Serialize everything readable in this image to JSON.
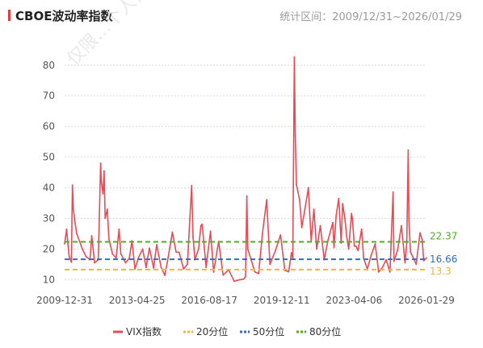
{
  "header": {
    "title": "CBOE波动率指数",
    "range": "统计区间：2009/12/31~2026/01/29"
  },
  "watermark": "仅限…个人使用",
  "colors": {
    "accent": "#e5383b",
    "series": "#e94a55",
    "p20": "#f5b53a",
    "p50": "#2f6ec4",
    "p80": "#4caf22"
  },
  "chart_data": {
    "type": "line",
    "title": "CBOE波动率指数",
    "ylim": [
      8,
      86
    ],
    "y_ticks": [
      10,
      20,
      30,
      40,
      50,
      60,
      70,
      80
    ],
    "x_tick_labels": [
      "2009-12-31",
      "2013-04-25",
      "2016-08-17",
      "2019-12-11",
      "2023-04-06",
      "2026-01-29"
    ],
    "x_range": [
      "2009-12-31",
      "2026-01-29"
    ],
    "grid": "horizontal dotted",
    "legend_position": "bottom",
    "series": [
      {
        "name": "VIX指数",
        "x": [
          "2009-12-31",
          "2010-02-01",
          "2010-03-15",
          "2010-04-20",
          "2010-05-07",
          "2010-05-20",
          "2010-06-15",
          "2010-07-15",
          "2010-09-01",
          "2010-10-15",
          "2010-12-15",
          "2011-02-15",
          "2011-03-16",
          "2011-05-01",
          "2011-07-01",
          "2011-08-08",
          "2011-08-20",
          "2011-09-15",
          "2011-10-03",
          "2011-10-20",
          "2011-11-25",
          "2011-12-20",
          "2012-02-15",
          "2012-04-15",
          "2012-06-01",
          "2012-07-01",
          "2012-09-15",
          "2012-11-15",
          "2012-12-28",
          "2013-02-15",
          "2013-04-15",
          "2013-06-20",
          "2013-08-15",
          "2013-10-08",
          "2013-12-15",
          "2014-02-03",
          "2014-04-15",
          "2014-06-15",
          "2014-08-01",
          "2014-10-15",
          "2014-12-15",
          "2015-02-01",
          "2015-04-15",
          "2015-06-15",
          "2015-08-24",
          "2015-09-15",
          "2015-10-15",
          "2015-12-15",
          "2016-01-20",
          "2016-02-11",
          "2016-04-15",
          "2016-06-24",
          "2016-08-15",
          "2016-11-04",
          "2017-01-15",
          "2017-04-15",
          "2017-07-15",
          "2017-10-15",
          "2017-12-15",
          "2018-01-15",
          "2018-02-05",
          "2018-02-20",
          "2018-04-15",
          "2018-06-15",
          "2018-08-15",
          "2018-10-15",
          "2018-12-24",
          "2019-02-15",
          "2019-05-15",
          "2019-08-05",
          "2019-10-15",
          "2019-12-15",
          "2020-01-31",
          "2020-02-20",
          "2020-03-16",
          "2020-04-01",
          "2020-04-20",
          "2020-06-11",
          "2020-07-15",
          "2020-09-04",
          "2020-10-30",
          "2020-12-15",
          "2021-01-27",
          "2021-03-15",
          "2021-05-12",
          "2021-07-15",
          "2021-09-15",
          "2021-11-30",
          "2021-12-20",
          "2022-01-24",
          "2022-03-07",
          "2022-04-15",
          "2022-05-09",
          "2022-06-15",
          "2022-07-15",
          "2022-08-15",
          "2022-09-30",
          "2022-10-15",
          "2022-11-15",
          "2022-12-15",
          "2023-01-15",
          "2023-03-13",
          "2023-04-15",
          "2023-06-15",
          "2023-08-15",
          "2023-10-20",
          "2023-12-15",
          "2024-02-15",
          "2024-04-15",
          "2024-06-15",
          "2024-08-05",
          "2024-08-20",
          "2024-10-15",
          "2024-12-18",
          "2025-02-15",
          "2025-03-15",
          "2025-04-08",
          "2025-04-20",
          "2025-05-15",
          "2025-06-20",
          "2025-08-15",
          "2025-10-16",
          "2025-11-20",
          "2025-12-15",
          "2026-01-29"
        ],
        "values": [
          21.7,
          26.5,
          17.6,
          15.7,
          40.9,
          33.5,
          29,
          25,
          22.5,
          20,
          17.5,
          16.5,
          24.3,
          15.5,
          16.5,
          48,
          42,
          38,
          45.5,
          30,
          33,
          23.4,
          18.5,
          17,
          26.5,
          18.5,
          15.5,
          17,
          22.7,
          13.5,
          17.3,
          20,
          14,
          20.3,
          13.8,
          21.4,
          14,
          11.4,
          16.5,
          25.5,
          19,
          19,
          13.5,
          15,
          40.7,
          24,
          16.5,
          20,
          27.6,
          28.1,
          14,
          25.8,
          12.5,
          22.5,
          11.5,
          13.2,
          9.5,
          10,
          10.2,
          11,
          37.3,
          20,
          16.5,
          12.5,
          12,
          25,
          36.1,
          15,
          19.5,
          24.6,
          13,
          12.6,
          18.8,
          17,
          82.7,
          57,
          41,
          36,
          27,
          33,
          40,
          22.5,
          33,
          20,
          27.6,
          16.5,
          23,
          28.6,
          20.5,
          31,
          36.5,
          22,
          34.8,
          30,
          24,
          20,
          31.6,
          30,
          21,
          20.9,
          19.5,
          26.5,
          17,
          13.5,
          17.9,
          21.7,
          12.5,
          14,
          16.5,
          12.5,
          38.6,
          16,
          19.5,
          27.6,
          15.5,
          22,
          52.3,
          30,
          19,
          17.5,
          15,
          25.3,
          23,
          16.2,
          17.1
        ]
      }
    ],
    "reference_lines": [
      {
        "name": "20分位",
        "value": 13.3,
        "label": "13.3"
      },
      {
        "name": "50分位",
        "value": 16.66,
        "label": "16.66"
      },
      {
        "name": "80分位",
        "value": 22.37,
        "label": "22.37"
      }
    ]
  }
}
